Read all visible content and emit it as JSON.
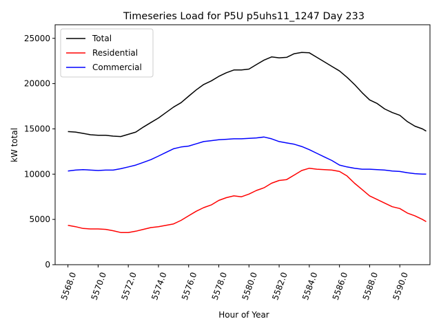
{
  "chart_data": {
    "type": "line",
    "title": "Timeseries Load for P5U p5uhs11_1247  Day 233",
    "xlabel": "Hour of Year",
    "ylabel": "kW total",
    "xlim": [
      5567.15,
      5592.0
    ],
    "ylim": [
      0,
      26500
    ],
    "xticks": [
      5568,
      5570,
      5572,
      5574,
      5576,
      5578,
      5580,
      5582,
      5584,
      5586,
      5588,
      5590
    ],
    "xtick_labels": [
      "5568.0",
      "5570.0",
      "5572.0",
      "5574.0",
      "5576.0",
      "5578.0",
      "5580.0",
      "5582.0",
      "5584.0",
      "5586.0",
      "5588.0",
      "5590.0"
    ],
    "yticks": [
      0,
      5000,
      10000,
      15000,
      20000,
      25000
    ],
    "ytick_labels": [
      "0",
      "5000",
      "10000",
      "15000",
      "20000",
      "25000"
    ],
    "legend_position": "top-left",
    "x": [
      5568.0,
      5568.5,
      5569.0,
      5569.5,
      5570.0,
      5570.5,
      5571.0,
      5571.5,
      5572.0,
      5572.5,
      5573.0,
      5573.5,
      5574.0,
      5574.5,
      5575.0,
      5575.5,
      5576.0,
      5576.5,
      5577.0,
      5577.5,
      5578.0,
      5578.5,
      5579.0,
      5579.5,
      5580.0,
      5580.5,
      5581.0,
      5581.5,
      5582.0,
      5582.5,
      5583.0,
      5583.5,
      5584.0,
      5584.5,
      5585.0,
      5585.5,
      5586.0,
      5586.5,
      5587.0,
      5587.5,
      5588.0,
      5588.5,
      5589.0,
      5589.5,
      5590.0,
      5590.5,
      5591.0,
      5591.5,
      5591.75
    ],
    "series": [
      {
        "name": "Total",
        "color": "#000000",
        "values": [
          14700,
          14650,
          14500,
          14350,
          14300,
          14300,
          14200,
          14150,
          14400,
          14650,
          15200,
          15700,
          16200,
          16800,
          17400,
          17900,
          18600,
          19300,
          19900,
          20300,
          20800,
          21200,
          21500,
          21500,
          21600,
          22100,
          22600,
          22950,
          22850,
          22900,
          23300,
          23450,
          23400,
          22900,
          22400,
          21900,
          21400,
          20700,
          19900,
          19000,
          18200,
          17800,
          17200,
          16800,
          16500,
          15800,
          15300,
          15000,
          14750
        ]
      },
      {
        "name": "Residential",
        "color": "#ff0000",
        "values": [
          4350,
          4200,
          4000,
          3950,
          3950,
          3900,
          3750,
          3550,
          3550,
          3700,
          3900,
          4100,
          4200,
          4350,
          4500,
          4900,
          5400,
          5900,
          6300,
          6600,
          7100,
          7400,
          7600,
          7500,
          7800,
          8200,
          8500,
          9000,
          9300,
          9400,
          9900,
          10400,
          10650,
          10550,
          10500,
          10450,
          10300,
          9800,
          9000,
          8300,
          7600,
          7200,
          6800,
          6400,
          6200,
          5700,
          5400,
          5000,
          4750
        ]
      },
      {
        "name": "Commercial",
        "color": "#0000ff",
        "values": [
          10350,
          10450,
          10500,
          10450,
          10400,
          10450,
          10450,
          10600,
          10800,
          11000,
          11300,
          11600,
          12000,
          12400,
          12800,
          13000,
          13100,
          13350,
          13600,
          13700,
          13800,
          13850,
          13900,
          13900,
          13950,
          14000,
          14100,
          13900,
          13600,
          13450,
          13300,
          13050,
          12700,
          12300,
          11900,
          11500,
          11000,
          10800,
          10650,
          10550,
          10550,
          10500,
          10450,
          10350,
          10300,
          10150,
          10050,
          10000,
          10000
        ]
      }
    ]
  }
}
